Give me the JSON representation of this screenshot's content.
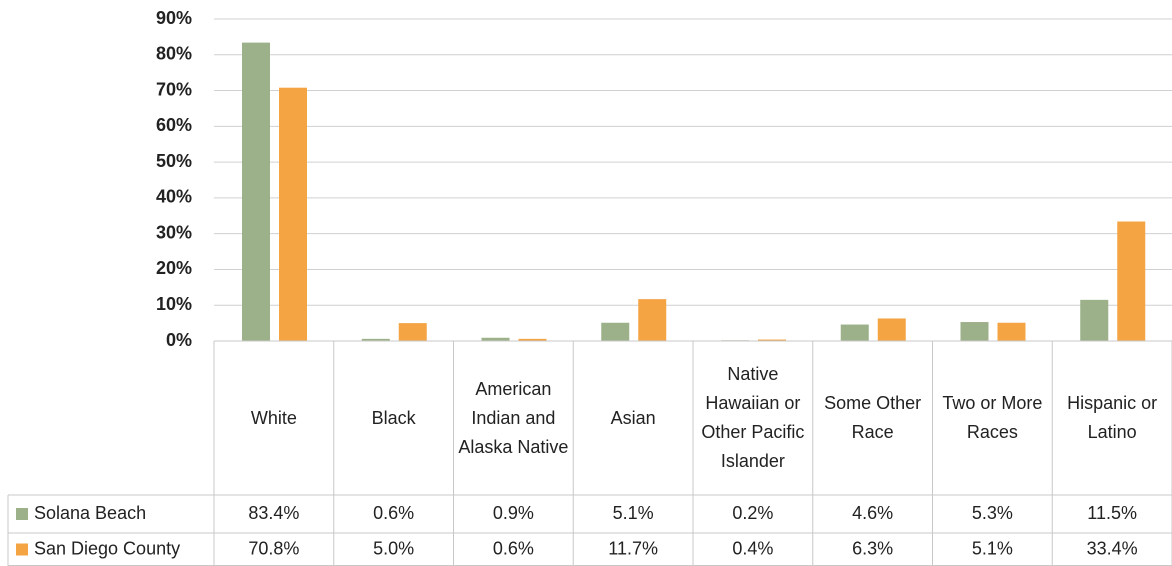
{
  "chart_data": {
    "type": "bar",
    "categories": [
      "White",
      "Black",
      "American Indian and Alaska Native",
      "Asian",
      "Native Hawaiian or Other Pacific Islander",
      "Some Other Race",
      "Two or More Races",
      "Hispanic or Latino"
    ],
    "series": [
      {
        "name": "Solana Beach",
        "color": "#9cb08a",
        "values": [
          83.4,
          0.6,
          0.9,
          5.1,
          0.2,
          4.6,
          5.3,
          11.5
        ],
        "value_labels": [
          "83.4%",
          "0.6%",
          "0.9%",
          "5.1%",
          "0.2%",
          "4.6%",
          "5.3%",
          "11.5%"
        ]
      },
      {
        "name": "San Diego County",
        "color": "#f4a443",
        "values": [
          70.8,
          5.0,
          0.6,
          11.7,
          0.4,
          6.3,
          5.1,
          33.4
        ],
        "value_labels": [
          "70.8%",
          "5.0%",
          "0.6%",
          "11.7%",
          "0.4%",
          "6.3%",
          "5.1%",
          "33.4%"
        ]
      }
    ],
    "ylim": [
      0,
      90
    ],
    "yticks": [
      {
        "value": 0,
        "label": "0%"
      },
      {
        "value": 10,
        "label": "10%"
      },
      {
        "value": 20,
        "label": "20%"
      },
      {
        "value": 30,
        "label": "30%"
      },
      {
        "value": 40,
        "label": "40%"
      },
      {
        "value": 50,
        "label": "50%"
      },
      {
        "value": 60,
        "label": "60%"
      },
      {
        "value": 70,
        "label": "70%"
      },
      {
        "value": 80,
        "label": "80%"
      },
      {
        "value": 90,
        "label": "90%"
      }
    ],
    "grid": true
  }
}
